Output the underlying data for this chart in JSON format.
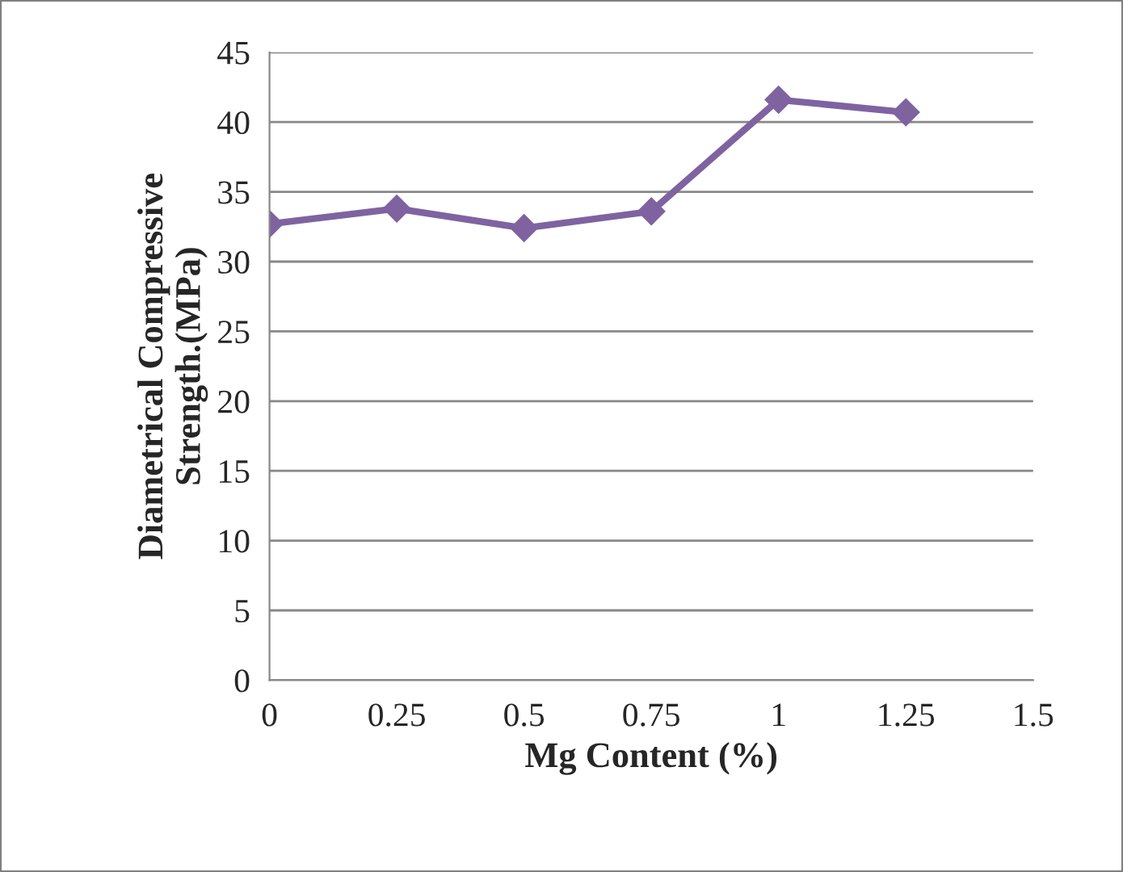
{
  "chart_data": {
    "type": "line",
    "xlabel": "Mg Content (%)",
    "ylabel": "Diametrical Compressive\nStrength.(MPa)",
    "x": [
      0,
      0.25,
      0.5,
      0.75,
      1,
      1.25
    ],
    "series": [
      {
        "color": "#7f63a1",
        "values": [
          32.7,
          33.8,
          32.4,
          33.6,
          41.6,
          40.7
        ]
      }
    ],
    "xlim": [
      0,
      1.5
    ],
    "xticks": [
      0,
      0.25,
      0.5,
      0.75,
      1,
      1.25,
      1.5
    ],
    "ylim": [
      0,
      45
    ],
    "yticks": [
      0,
      5,
      10,
      15,
      20,
      25,
      30,
      35,
      40,
      45
    ],
    "grid": "y",
    "marker": "diamond",
    "line_style": "solid",
    "legend": false
  }
}
